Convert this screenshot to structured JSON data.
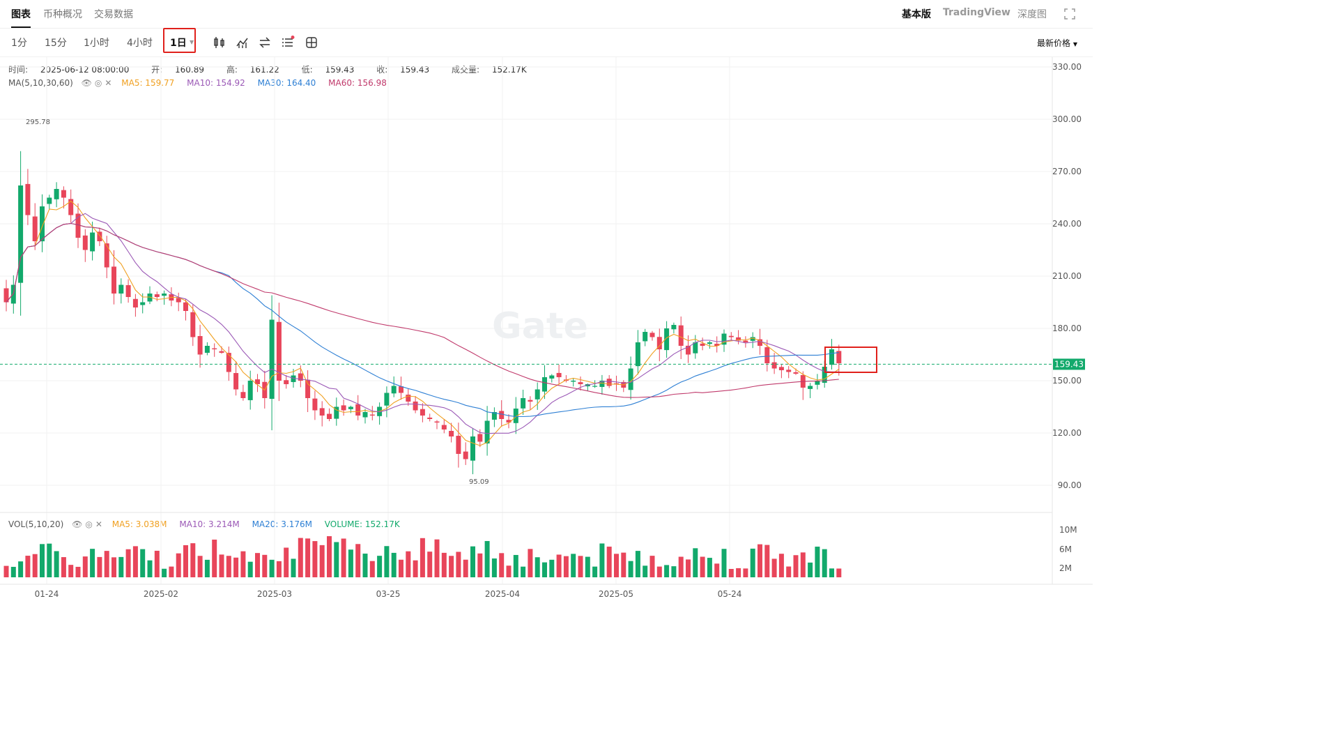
{
  "header": {
    "tabs": [
      {
        "label": "图表",
        "active": true
      },
      {
        "label": "币种概况",
        "active": false
      },
      {
        "label": "交易数据",
        "active": false
      }
    ],
    "views": [
      {
        "label": "基本版",
        "active": true
      },
      {
        "label": "TradingView",
        "active": false
      },
      {
        "label": "深度图",
        "active": false
      }
    ]
  },
  "toolbar": {
    "timeframes": [
      {
        "label": "1分",
        "active": false
      },
      {
        "label": "15分",
        "active": false
      },
      {
        "label": "1小时",
        "active": false
      },
      {
        "label": "4小时",
        "active": false
      },
      {
        "label": "1日",
        "active": true
      }
    ],
    "icons": [
      "candle-type-icon",
      "indicator-icon",
      "swap-icon",
      "settings-list-icon",
      "layout-icon"
    ],
    "price_type": "最新价格"
  },
  "ohlc": {
    "time_label": "时间:",
    "time": "2025-06-12 08:00:00",
    "open_label": "开:",
    "open": "160.89",
    "high_label": "高:",
    "high": "161.22",
    "low_label": "低:",
    "low": "159.43",
    "close_label": "收:",
    "close": "159.43",
    "vol_label": "成交量:",
    "vol": "152.17K"
  },
  "ma_legend": {
    "name": "MA(5,10,30,60)",
    "items": [
      {
        "label": "MA5: 159.77",
        "color": "#f0a020"
      },
      {
        "label": "MA10: 154.92",
        "color": "#9b59b6"
      },
      {
        "label": "MA30: 164.40",
        "color": "#2d7fd4"
      },
      {
        "label": "MA60: 156.98",
        "color": "#c0396b"
      }
    ]
  },
  "vol_legend": {
    "name": "VOL(5,10,20)",
    "items": [
      {
        "label": "MA5: 3.038M",
        "color": "#f0a020"
      },
      {
        "label": "MA10: 3.214M",
        "color": "#9b59b6"
      },
      {
        "label": "MA20: 3.176M",
        "color": "#2d7fd4"
      },
      {
        "label": "VOLUME: 152.17K",
        "color": "#12a96b"
      }
    ]
  },
  "watermark": "Gate",
  "colors": {
    "up": "#12a96b",
    "down": "#e8455a",
    "grid": "#f2f2f2"
  },
  "chart_data": {
    "type": "candlestick",
    "y_ticks": [
      "330.00",
      "300.00",
      "270.00",
      "240.00",
      "210.00",
      "180.00",
      "150.00",
      "120.00",
      "90.00"
    ],
    "ylim": [
      90,
      330
    ],
    "vol_ticks": [
      "10M",
      "6M",
      "2M"
    ],
    "x_ticks": [
      "01-24",
      "2025-02",
      "2025-03",
      "03-25",
      "2025-04",
      "2025-05",
      "05-24"
    ],
    "current_price": "159.43",
    "max_label": "295.78",
    "min_label": "95.09",
    "close_series": [
      195,
      205,
      262,
      245,
      230,
      250,
      255,
      260,
      255,
      245,
      232,
      225,
      235,
      230,
      215,
      200,
      205,
      198,
      192,
      195,
      200,
      198,
      200,
      196,
      195,
      190,
      175,
      165,
      170,
      168,
      166,
      155,
      145,
      140,
      150,
      148,
      140,
      185,
      150,
      148,
      153,
      150,
      140,
      133,
      130,
      128,
      135,
      133,
      135,
      130,
      132,
      130,
      135,
      143,
      147,
      143,
      138,
      133,
      130,
      128,
      126,
      122,
      118,
      108,
      105,
      118,
      115,
      127,
      132,
      128,
      126,
      134,
      140,
      138,
      145,
      152,
      153,
      152,
      150,
      150,
      148,
      148,
      147,
      150,
      147,
      148,
      146,
      157,
      172,
      178,
      175,
      168,
      180,
      182,
      170,
      165,
      172,
      170,
      172,
      170,
      177,
      175,
      173,
      172,
      175,
      170,
      160,
      157,
      156,
      155,
      154,
      146,
      147,
      150,
      158,
      168,
      160
    ]
  }
}
